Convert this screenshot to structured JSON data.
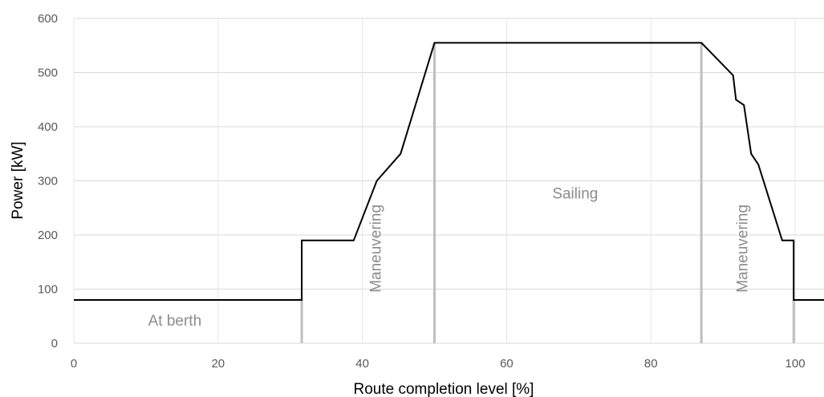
{
  "chart_data": {
    "type": "line",
    "title": "",
    "xlabel": "Route completion level [%]",
    "ylabel": "Power [kW]",
    "xlim": [
      0,
      104
    ],
    "ylim": [
      0,
      600
    ],
    "x_ticks": [
      0,
      20,
      40,
      60,
      80,
      100
    ],
    "y_ticks": [
      0,
      100,
      200,
      300,
      400,
      500,
      600
    ],
    "grid": true,
    "legend": "none",
    "series": [
      {
        "color": "#000000",
        "x": [
          0,
          31.6,
          31.6,
          38.8,
          42,
          45.3,
          50,
          87,
          91.4,
          91.8,
          92.9,
          93.9,
          94.9,
          98.2,
          99.8,
          99.8,
          104
        ],
        "y": [
          80,
          80,
          190,
          190,
          300,
          350,
          555,
          555,
          495,
          450,
          440,
          350,
          330,
          190,
          190,
          80,
          80
        ]
      }
    ],
    "phase_dividers": {
      "color": "#bfbfbf",
      "lines": [
        {
          "x": 31.6,
          "y_top": 80
        },
        {
          "x": 50,
          "y_top": 555
        },
        {
          "x": 87,
          "y_top": 555
        },
        {
          "x": 99.8,
          "y_top": 80
        }
      ]
    },
    "annotations": [
      {
        "text": "At berth",
        "x": 14,
        "y": 40,
        "rotate": 0
      },
      {
        "text": "Maneuvering",
        "x": 42,
        "y": 175,
        "rotate": -90
      },
      {
        "text": "Sailing",
        "x": 69.5,
        "y": 275,
        "rotate": 0
      },
      {
        "text": "Maneuvering",
        "x": 92.8,
        "y": 175,
        "rotate": -90
      }
    ]
  }
}
